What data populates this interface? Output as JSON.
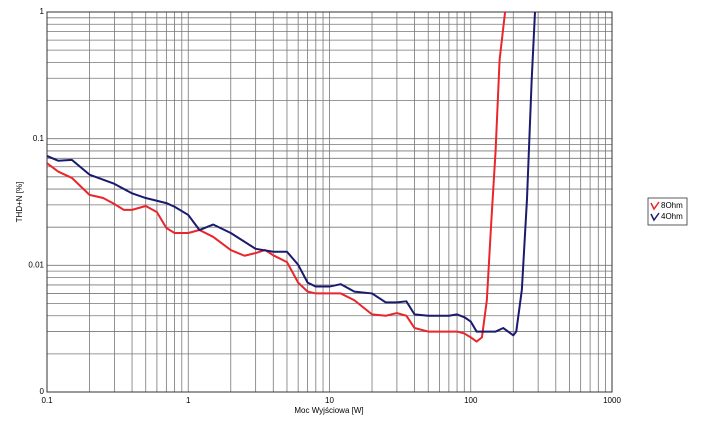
{
  "chart_data": {
    "type": "line",
    "xlabel": "Moc Wyjściowa [W]",
    "ylabel": "THD+N [%]",
    "xscale": "log",
    "yscale": "log",
    "grid": true,
    "legend": "right",
    "xlim": [
      0.1,
      1000
    ],
    "ylim": [
      0.001,
      1
    ],
    "xticks": [
      0.1,
      1,
      10,
      100,
      1000
    ],
    "yticks": [
      {
        "value": 0.001,
        "label": "0"
      },
      0.01,
      0.1,
      1
    ],
    "series": [
      {
        "name": "8Ohm",
        "color": "#e8262b",
        "x": [
          0.1,
          0.12,
          0.15,
          0.2,
          0.25,
          0.3,
          0.35,
          0.4,
          0.5,
          0.6,
          0.7,
          0.8,
          1,
          1.2,
          1.5,
          2,
          2.5,
          3,
          3.5,
          4,
          5,
          6,
          7,
          8,
          10,
          12,
          15,
          20,
          25,
          30,
          35,
          40,
          50,
          60,
          70,
          80,
          90,
          100,
          110,
          120,
          130,
          140,
          150,
          160,
          175
        ],
        "values": [
          0.064,
          0.055,
          0.049,
          0.036,
          0.034,
          0.0305,
          0.0274,
          0.0274,
          0.0294,
          0.0263,
          0.0197,
          0.018,
          0.018,
          0.019,
          0.0168,
          0.0132,
          0.0119,
          0.0125,
          0.0132,
          0.012,
          0.0106,
          0.0073,
          0.0062,
          0.006,
          0.006,
          0.006,
          0.0053,
          0.0041,
          0.004,
          0.0042,
          0.004,
          0.0032,
          0.003,
          0.003,
          0.003,
          0.003,
          0.0029,
          0.0027,
          0.0025,
          0.0027,
          0.0053,
          0.0228,
          0.081,
          0.418,
          1
        ]
      },
      {
        "name": "4Ohm",
        "color": "#1a1a6e",
        "x": [
          0.1,
          0.12,
          0.15,
          0.2,
          0.3,
          0.4,
          0.5,
          0.7,
          0.8,
          1,
          1.2,
          1.5,
          2,
          3,
          4,
          5,
          6,
          7,
          8,
          10,
          12,
          15,
          20,
          25,
          30,
          35,
          40,
          50,
          70,
          80,
          90,
          100,
          110,
          130,
          150,
          170,
          200,
          210,
          230,
          250,
          270,
          285
        ],
        "values": [
          0.073,
          0.067,
          0.068,
          0.052,
          0.044,
          0.037,
          0.034,
          0.031,
          0.029,
          0.025,
          0.019,
          0.021,
          0.018,
          0.0135,
          0.0128,
          0.0128,
          0.0101,
          0.0073,
          0.0068,
          0.0068,
          0.0071,
          0.0062,
          0.006,
          0.0051,
          0.0051,
          0.0052,
          0.0041,
          0.004,
          0.004,
          0.0041,
          0.0039,
          0.0036,
          0.003,
          0.003,
          0.003,
          0.0032,
          0.0028,
          0.003,
          0.0064,
          0.033,
          0.29,
          1
        ]
      }
    ]
  }
}
